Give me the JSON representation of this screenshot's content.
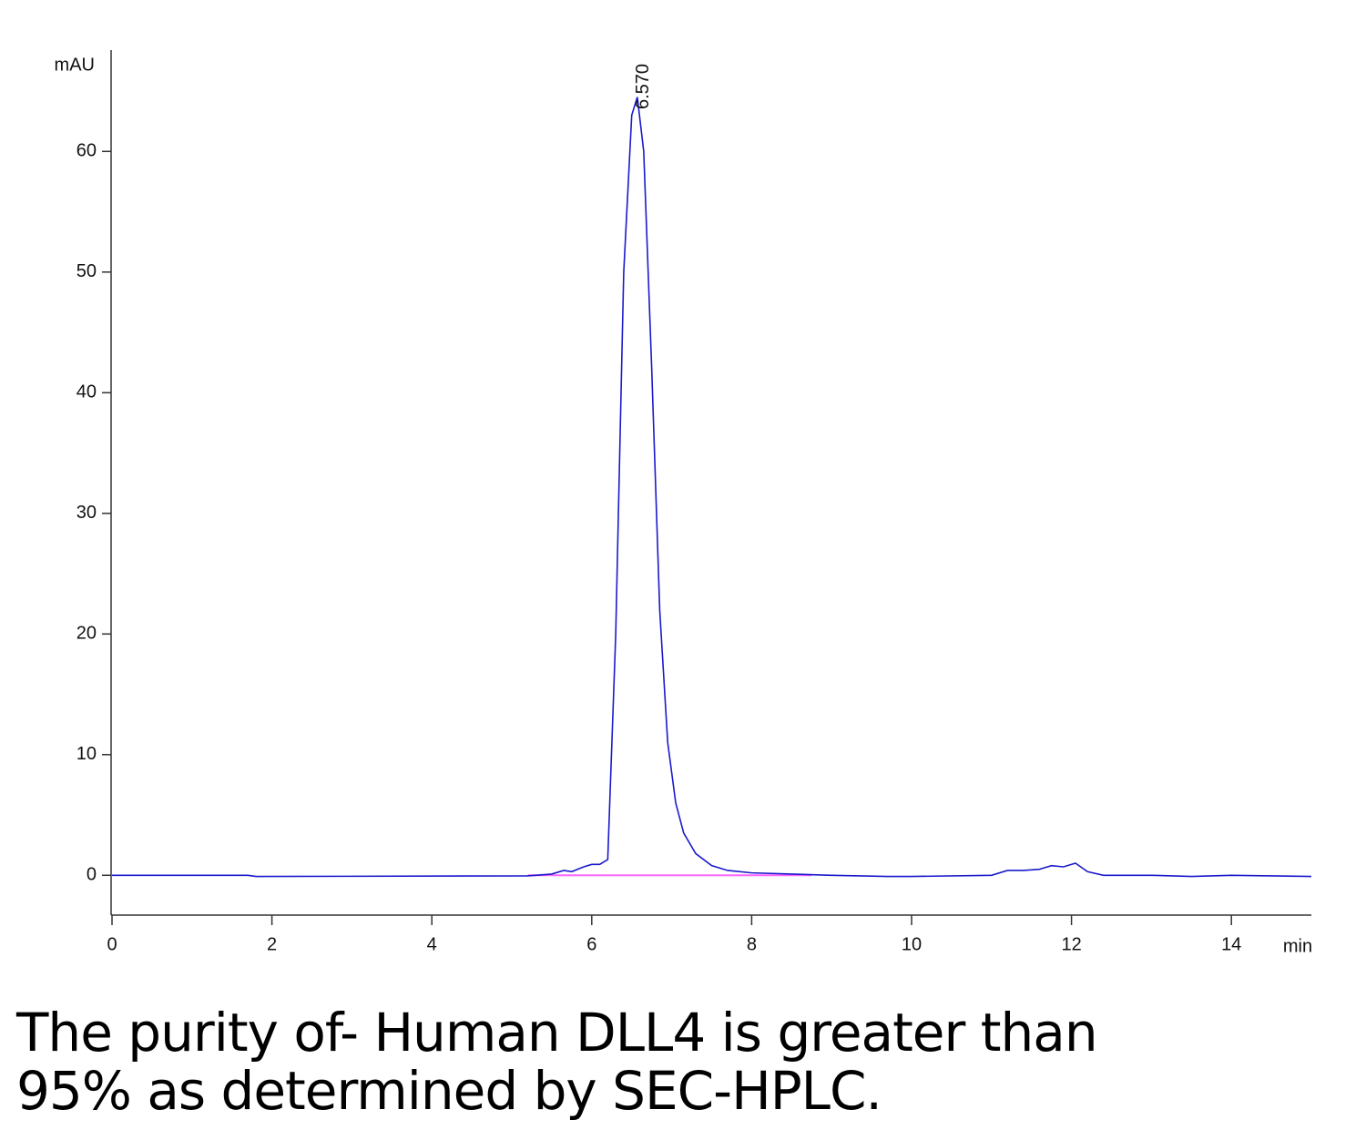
{
  "chart_data": {
    "type": "line",
    "ylabel": "mAU",
    "xlabel": "min",
    "xlim": [
      0,
      15
    ],
    "xticks": [
      0,
      2,
      4,
      6,
      8,
      10,
      12,
      14
    ],
    "ylim": [
      -3.3,
      68.4
    ],
    "yticks": [
      0,
      10,
      20,
      30,
      40,
      50,
      60
    ],
    "x": [
      0,
      1.7,
      1.8,
      5.2,
      5.5,
      5.65,
      5.75,
      5.9,
      6.0,
      6.1,
      6.2,
      6.3,
      6.4,
      6.5,
      6.57,
      6.65,
      6.75,
      6.85,
      6.95,
      7.05,
      7.15,
      7.3,
      7.5,
      7.7,
      8.0,
      8.5,
      9,
      9.7,
      10,
      11,
      11.2,
      11.4,
      11.6,
      11.75,
      11.9,
      12.05,
      12.2,
      12.4,
      13,
      13.5,
      14,
      14.5,
      15
    ],
    "series": [
      {
        "color": "#1a1acc",
        "values": [
          0,
          0,
          -0.1,
          -0.05,
          0.1,
          0.4,
          0.3,
          0.7,
          0.9,
          0.9,
          1.3,
          20,
          50,
          63,
          64.5,
          60,
          42,
          22,
          11,
          6,
          3.5,
          1.8,
          0.8,
          0.4,
          0.2,
          0.1,
          0,
          -0.1,
          -0.1,
          0,
          0.4,
          0.4,
          0.5,
          0.8,
          0.7,
          1.0,
          0.3,
          0,
          0,
          -0.1,
          0,
          -0.05,
          -0.1
        ]
      }
    ],
    "baseline": {
      "color": "#ff66ff",
      "x": [
        5.2,
        8.75
      ],
      "values": [
        0,
        0
      ]
    },
    "annotations": [
      {
        "text": "6.570",
        "x": 6.57
      }
    ],
    "caption": [
      "The purity of- Human DLL4 is greater than",
      "95% as determined by SEC-HPLC."
    ]
  }
}
